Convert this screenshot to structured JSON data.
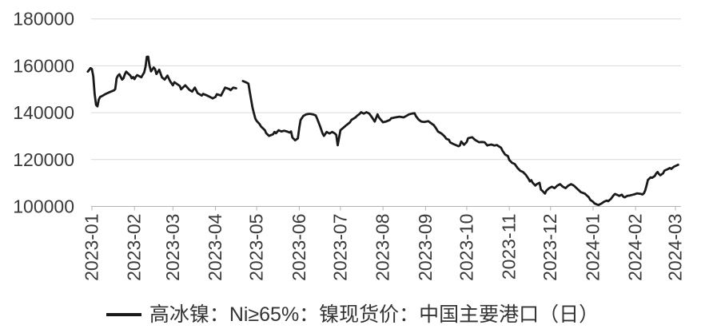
{
  "chart": {
    "background": "#ffffff",
    "text_color": "#3a3a3a",
    "grid_color": "#d9d9d9",
    "axis_color": "#b3b3b3",
    "line_color": "#1a1a1a"
  },
  "legend": {
    "label": "高冰镍：Ni≥65%：镍现货价：中国主要港口（日）"
  },
  "chart_data": {
    "type": "line",
    "title": "",
    "xlabel": "",
    "ylabel": "",
    "ylim": [
      100000,
      180000
    ],
    "y_ticks": [
      100000,
      120000,
      140000,
      160000,
      180000
    ],
    "x_ticks": [
      "2023-01",
      "2023-02",
      "2023-03",
      "2023-04",
      "2023-05",
      "2023-06",
      "2023-07",
      "2023-08",
      "2023-09",
      "2023-10",
      "2023-11",
      "2023-12",
      "2024-01",
      "2024-02",
      "2024-03"
    ],
    "grid": "horizontal",
    "legend_position": "bottom",
    "series": [
      {
        "name": "高冰镍：Ni≥65%：镍现货价：中国主要港口（日）",
        "color": "#1a1a1a",
        "points": [
          [
            "2022-12-29",
            157500
          ],
          [
            "2022-12-31",
            159000
          ],
          [
            "2023-01-01",
            158600
          ],
          [
            "2023-01-02",
            155500
          ],
          [
            "2023-01-03",
            148000
          ],
          [
            "2023-01-04",
            143300
          ],
          [
            "2023-01-05",
            142700
          ],
          [
            "2023-01-06",
            145600
          ],
          [
            "2023-01-07",
            146700
          ],
          [
            "2023-01-09",
            147300
          ],
          [
            "2023-01-11",
            148000
          ],
          [
            "2023-01-14",
            148800
          ],
          [
            "2023-01-17",
            149500
          ],
          [
            "2023-01-18",
            150100
          ],
          [
            "2023-01-19",
            154700
          ],
          [
            "2023-01-20",
            155800
          ],
          [
            "2023-01-21",
            156400
          ],
          [
            "2023-01-22",
            155200
          ],
          [
            "2023-01-23",
            154100
          ],
          [
            "2023-01-24",
            154700
          ],
          [
            "2023-01-25",
            156400
          ],
          [
            "2023-01-26",
            157500
          ],
          [
            "2023-01-27",
            156900
          ],
          [
            "2023-01-29",
            155800
          ],
          [
            "2023-01-30",
            154700
          ],
          [
            "2023-01-31",
            155200
          ],
          [
            "2023-02-01",
            154300
          ],
          [
            "2023-02-02",
            155400
          ],
          [
            "2023-02-03",
            156000
          ],
          [
            "2023-02-05",
            155400
          ],
          [
            "2023-02-06",
            155100
          ],
          [
            "2023-02-07",
            156200
          ],
          [
            "2023-02-08",
            157100
          ],
          [
            "2023-02-09",
            159500
          ],
          [
            "2023-02-10",
            163800
          ],
          [
            "2023-02-11",
            163900
          ],
          [
            "2023-02-12",
            160000
          ],
          [
            "2023-02-13",
            157600
          ],
          [
            "2023-02-15",
            159300
          ],
          [
            "2023-02-16",
            158600
          ],
          [
            "2023-02-17",
            156500
          ],
          [
            "2023-02-19",
            158300
          ],
          [
            "2023-02-21",
            155100
          ],
          [
            "2023-02-23",
            154100
          ],
          [
            "2023-02-25",
            155800
          ],
          [
            "2023-02-27",
            153400
          ],
          [
            "2023-03-01",
            151700
          ],
          [
            "2023-03-02",
            153000
          ],
          [
            "2023-03-06",
            151400
          ],
          [
            "2023-03-07",
            150000
          ],
          [
            "2023-03-10",
            151700
          ],
          [
            "2023-03-13",
            149700
          ],
          [
            "2023-03-15",
            149000
          ],
          [
            "2023-03-17",
            150700
          ],
          [
            "2023-03-19",
            148300
          ],
          [
            "2023-03-22",
            147300
          ],
          [
            "2023-03-23",
            148000
          ],
          [
            "2023-03-26",
            147300
          ],
          [
            "2023-03-28",
            146700
          ],
          [
            "2023-03-30",
            146100
          ],
          [
            "2023-04-01",
            146700
          ],
          [
            "2023-04-02",
            147900
          ],
          [
            "2023-04-05",
            147300
          ],
          [
            "2023-04-06",
            148400
          ],
          [
            "2023-04-08",
            150700
          ],
          [
            "2023-04-11",
            150100
          ],
          [
            "2023-04-12",
            149600
          ],
          [
            "2023-04-14",
            150700
          ],
          [
            "2023-04-16",
            150400
          ],
          null,
          [
            "2023-04-21",
            153500
          ],
          [
            "2023-04-23",
            153000
          ],
          [
            "2023-04-25",
            152400
          ],
          [
            "2023-04-26",
            148900
          ],
          [
            "2023-04-27",
            145500
          ],
          [
            "2023-04-28",
            142000
          ],
          [
            "2023-04-29",
            139700
          ],
          [
            "2023-04-30",
            137500
          ],
          [
            "2023-05-01",
            136500
          ],
          [
            "2023-05-03",
            135200
          ],
          [
            "2023-05-04",
            134200
          ],
          [
            "2023-05-07",
            132500
          ],
          [
            "2023-05-08",
            131200
          ],
          [
            "2023-05-10",
            130100
          ],
          [
            "2023-05-13",
            130800
          ],
          [
            "2023-05-14",
            131800
          ],
          [
            "2023-05-15",
            131200
          ],
          [
            "2023-05-17",
            132500
          ],
          [
            "2023-05-19",
            132000
          ],
          [
            "2023-05-21",
            132300
          ],
          [
            "2023-05-23",
            132000
          ],
          [
            "2023-05-25",
            131500
          ],
          [
            "2023-05-26",
            132000
          ],
          [
            "2023-05-27",
            129400
          ],
          [
            "2023-05-29",
            128200
          ],
          [
            "2023-05-31",
            129000
          ],
          [
            "2023-06-01",
            133500
          ],
          [
            "2023-06-02",
            136900
          ],
          [
            "2023-06-04",
            138600
          ],
          [
            "2023-06-06",
            139300
          ],
          [
            "2023-06-08",
            139500
          ],
          [
            "2023-06-09",
            139500
          ],
          [
            "2023-06-11",
            139300
          ],
          [
            "2023-06-13",
            138800
          ],
          [
            "2023-06-14",
            137500
          ],
          [
            "2023-06-16",
            134500
          ],
          [
            "2023-06-18",
            131100
          ],
          [
            "2023-06-19",
            130100
          ],
          [
            "2023-06-21",
            131800
          ],
          [
            "2023-06-23",
            131100
          ],
          [
            "2023-06-25",
            131800
          ],
          [
            "2023-06-27",
            131100
          ],
          [
            "2023-06-28",
            130500
          ],
          [
            "2023-06-29",
            126100
          ],
          [
            "2023-07-01",
            132500
          ],
          [
            "2023-07-03",
            133500
          ],
          [
            "2023-07-05",
            134500
          ],
          [
            "2023-07-08",
            135900
          ],
          [
            "2023-07-09",
            136900
          ],
          [
            "2023-07-12",
            138000
          ],
          [
            "2023-07-13",
            138600
          ],
          [
            "2023-07-15",
            139500
          ],
          [
            "2023-07-16",
            140200
          ],
          [
            "2023-07-18",
            139600
          ],
          [
            "2023-07-20",
            140200
          ],
          [
            "2023-07-22",
            139600
          ],
          [
            "2023-07-24",
            138000
          ],
          [
            "2023-07-26",
            136200
          ],
          [
            "2023-07-28",
            139300
          ],
          [
            "2023-07-29",
            138000
          ],
          [
            "2023-08-01",
            135900
          ],
          [
            "2023-08-03",
            136200
          ],
          [
            "2023-08-06",
            136900
          ],
          [
            "2023-08-07",
            137600
          ],
          [
            "2023-08-10",
            138000
          ],
          [
            "2023-08-13",
            138300
          ],
          [
            "2023-08-16",
            138000
          ],
          [
            "2023-08-18",
            138600
          ],
          [
            "2023-08-20",
            139300
          ],
          [
            "2023-08-22",
            139600
          ],
          [
            "2023-08-24",
            139800
          ],
          [
            "2023-08-25",
            138500
          ],
          [
            "2023-08-27",
            137000
          ],
          [
            "2023-08-29",
            136200
          ],
          [
            "2023-08-31",
            136000
          ],
          [
            "2023-09-03",
            136400
          ],
          [
            "2023-09-05",
            135500
          ],
          [
            "2023-09-07",
            134700
          ],
          [
            "2023-09-09",
            133000
          ],
          [
            "2023-09-10",
            132000
          ],
          [
            "2023-09-12",
            131300
          ],
          [
            "2023-09-13",
            130900
          ],
          [
            "2023-09-15",
            129800
          ],
          [
            "2023-09-16",
            128900
          ],
          [
            "2023-09-18",
            128400
          ],
          [
            "2023-09-19",
            127300
          ],
          [
            "2023-09-21",
            126700
          ],
          [
            "2023-09-23",
            126200
          ],
          [
            "2023-09-25",
            125700
          ],
          [
            "2023-09-26",
            126000
          ],
          [
            "2023-09-27",
            127700
          ],
          [
            "2023-09-29",
            126300
          ],
          [
            "2023-10-01",
            127500
          ],
          [
            "2023-10-02",
            129100
          ],
          [
            "2023-10-04",
            129400
          ],
          [
            "2023-10-05",
            129500
          ],
          [
            "2023-10-07",
            128400
          ],
          [
            "2023-10-09",
            127700
          ],
          [
            "2023-10-10",
            127400
          ],
          [
            "2023-10-12",
            127500
          ],
          [
            "2023-10-14",
            127400
          ],
          [
            "2023-10-16",
            126000
          ],
          [
            "2023-10-17",
            126200
          ],
          [
            "2023-10-19",
            126400
          ],
          [
            "2023-10-21",
            126000
          ],
          [
            "2023-10-23",
            126200
          ],
          [
            "2023-10-24",
            125800
          ],
          [
            "2023-10-26",
            125000
          ],
          [
            "2023-10-27",
            123800
          ],
          [
            "2023-10-29",
            122100
          ],
          [
            "2023-10-31",
            121500
          ],
          [
            "2023-11-01",
            119800
          ],
          [
            "2023-11-03",
            118600
          ],
          [
            "2023-11-05",
            118100
          ],
          [
            "2023-11-07",
            116400
          ],
          [
            "2023-11-09",
            115200
          ],
          [
            "2023-11-11",
            114700
          ],
          [
            "2023-11-13",
            113500
          ],
          [
            "2023-11-15",
            111800
          ],
          [
            "2023-11-16",
            110700
          ],
          [
            "2023-11-17",
            111200
          ],
          [
            "2023-11-18",
            110100
          ],
          [
            "2023-11-20",
            108900
          ],
          [
            "2023-11-21",
            109500
          ],
          [
            "2023-11-23",
            110100
          ],
          [
            "2023-11-24",
            107200
          ],
          [
            "2023-11-25",
            106700
          ],
          [
            "2023-11-27",
            105500
          ],
          [
            "2023-11-28",
            106700
          ],
          [
            "2023-11-30",
            107800
          ],
          [
            "2023-12-02",
            108400
          ],
          [
            "2023-12-04",
            107800
          ],
          [
            "2023-12-06",
            108900
          ],
          [
            "2023-12-08",
            109500
          ],
          [
            "2023-12-10",
            108400
          ],
          [
            "2023-12-12",
            107800
          ],
          [
            "2023-12-14",
            108900
          ],
          [
            "2023-12-16",
            109500
          ],
          [
            "2023-12-18",
            108900
          ],
          [
            "2023-12-20",
            107800
          ],
          [
            "2023-12-22",
            106700
          ],
          [
            "2023-12-23",
            106100
          ],
          [
            "2023-12-26",
            105500
          ],
          [
            "2023-12-28",
            104400
          ],
          [
            "2023-12-29",
            103800
          ],
          [
            "2023-12-30",
            102800
          ],
          [
            "2024-01-01",
            102000
          ],
          [
            "2024-01-02",
            101300
          ],
          [
            "2024-01-04",
            100800
          ],
          [
            "2024-01-05",
            100600
          ],
          [
            "2024-01-07",
            101200
          ],
          [
            "2024-01-09",
            102000
          ],
          [
            "2024-01-11",
            102500
          ],
          [
            "2024-01-12",
            102200
          ],
          [
            "2024-01-14",
            103200
          ],
          [
            "2024-01-16",
            104800
          ],
          [
            "2024-01-17",
            105300
          ],
          [
            "2024-01-19",
            104800
          ],
          [
            "2024-01-20",
            104500
          ],
          [
            "2024-01-22",
            105000
          ],
          [
            "2024-01-23",
            104200
          ],
          [
            "2024-01-24",
            103900
          ],
          [
            "2024-01-26",
            104500
          ],
          [
            "2024-01-28",
            104700
          ],
          [
            "2024-01-30",
            105000
          ],
          [
            "2024-02-01",
            105300
          ],
          [
            "2024-02-02",
            105600
          ],
          [
            "2024-02-05",
            105300
          ],
          [
            "2024-02-06",
            105100
          ],
          [
            "2024-02-07",
            105600
          ],
          [
            "2024-02-08",
            106800
          ],
          [
            "2024-02-09",
            109000
          ],
          [
            "2024-02-10",
            111300
          ],
          [
            "2024-02-11",
            111900
          ],
          [
            "2024-02-12",
            112400
          ],
          [
            "2024-02-13",
            112200
          ],
          [
            "2024-02-15",
            113000
          ],
          [
            "2024-02-16",
            114100
          ],
          [
            "2024-02-17",
            114700
          ],
          [
            "2024-02-18",
            113800
          ],
          [
            "2024-02-19",
            113300
          ],
          [
            "2024-02-21",
            114100
          ],
          [
            "2024-02-22",
            115300
          ],
          [
            "2024-02-24",
            115800
          ],
          [
            "2024-02-26",
            116400
          ],
          [
            "2024-02-27",
            116000
          ],
          [
            "2024-02-29",
            117000
          ],
          [
            "2024-03-02",
            117500
          ],
          [
            "2024-03-03",
            117800
          ]
        ]
      }
    ]
  }
}
